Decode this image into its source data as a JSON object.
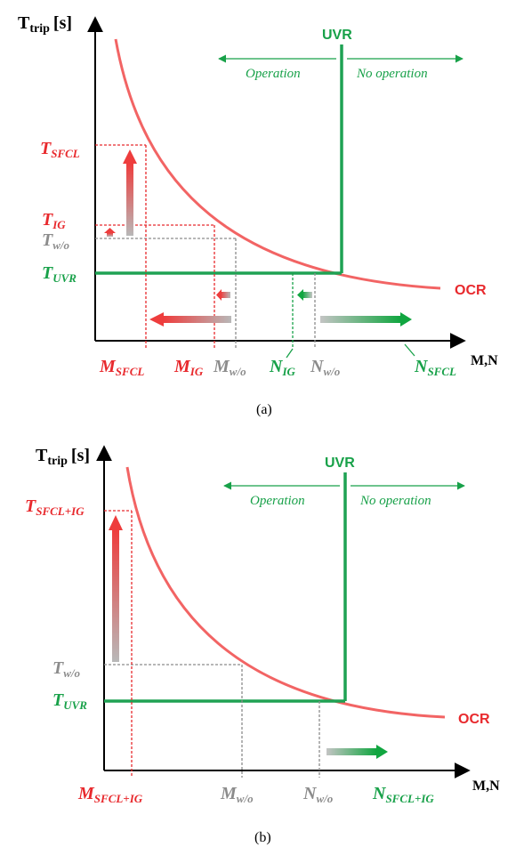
{
  "colors": {
    "red": "#e8292d",
    "green": "#18a149",
    "gray": "#8c8c8c",
    "curve": "#f26464",
    "uvr": "#1fa253",
    "axis": "#000000"
  },
  "panel_a": {
    "y_axis": {
      "main": "T",
      "sub": "trip",
      "unit": "[s]"
    },
    "x_axis": "M,N",
    "uvr": "UVR",
    "ocr": "OCR",
    "operation": "Operation",
    "no_operation": "No operation",
    "t_sfcl": {
      "main": "T",
      "sub": "SFCL"
    },
    "t_ig": {
      "main": "T",
      "sub": "IG"
    },
    "t_wo": {
      "main": "T",
      "sub": "w/o"
    },
    "t_uvr": {
      "main": "T",
      "sub": "UVR"
    },
    "m_sfcl": {
      "main": "M",
      "sub": "SFCL"
    },
    "m_ig": {
      "main": "M",
      "sub": "IG"
    },
    "m_wo": {
      "main": "M",
      "sub": "w/o"
    },
    "n_ig": {
      "main": "N",
      "sub": "IG"
    },
    "n_wo": {
      "main": "N",
      "sub": "w/o"
    },
    "n_sfcl": {
      "main": "N",
      "sub": "SFCL"
    },
    "caption": "(a)"
  },
  "panel_b": {
    "y_axis": {
      "main": "T",
      "sub": "trip",
      "unit": "[s]"
    },
    "x_axis": "M,N",
    "uvr": "UVR",
    "ocr": "OCR",
    "operation": "Operation",
    "no_operation": "No operation",
    "t_sfcl_ig": {
      "main": "T",
      "sub": "SFCL+IG"
    },
    "t_wo": {
      "main": "T",
      "sub": "w/o"
    },
    "t_uvr": {
      "main": "T",
      "sub": "UVR"
    },
    "m_sfcl_ig": {
      "main": "M",
      "sub": "SFCL+IG"
    },
    "m_wo": {
      "main": "M",
      "sub": "w/o"
    },
    "n_wo": {
      "main": "N",
      "sub": "w/o"
    },
    "n_sfcl_ig": {
      "main": "N",
      "sub": "SFCL+IG"
    },
    "caption": "(b)"
  }
}
